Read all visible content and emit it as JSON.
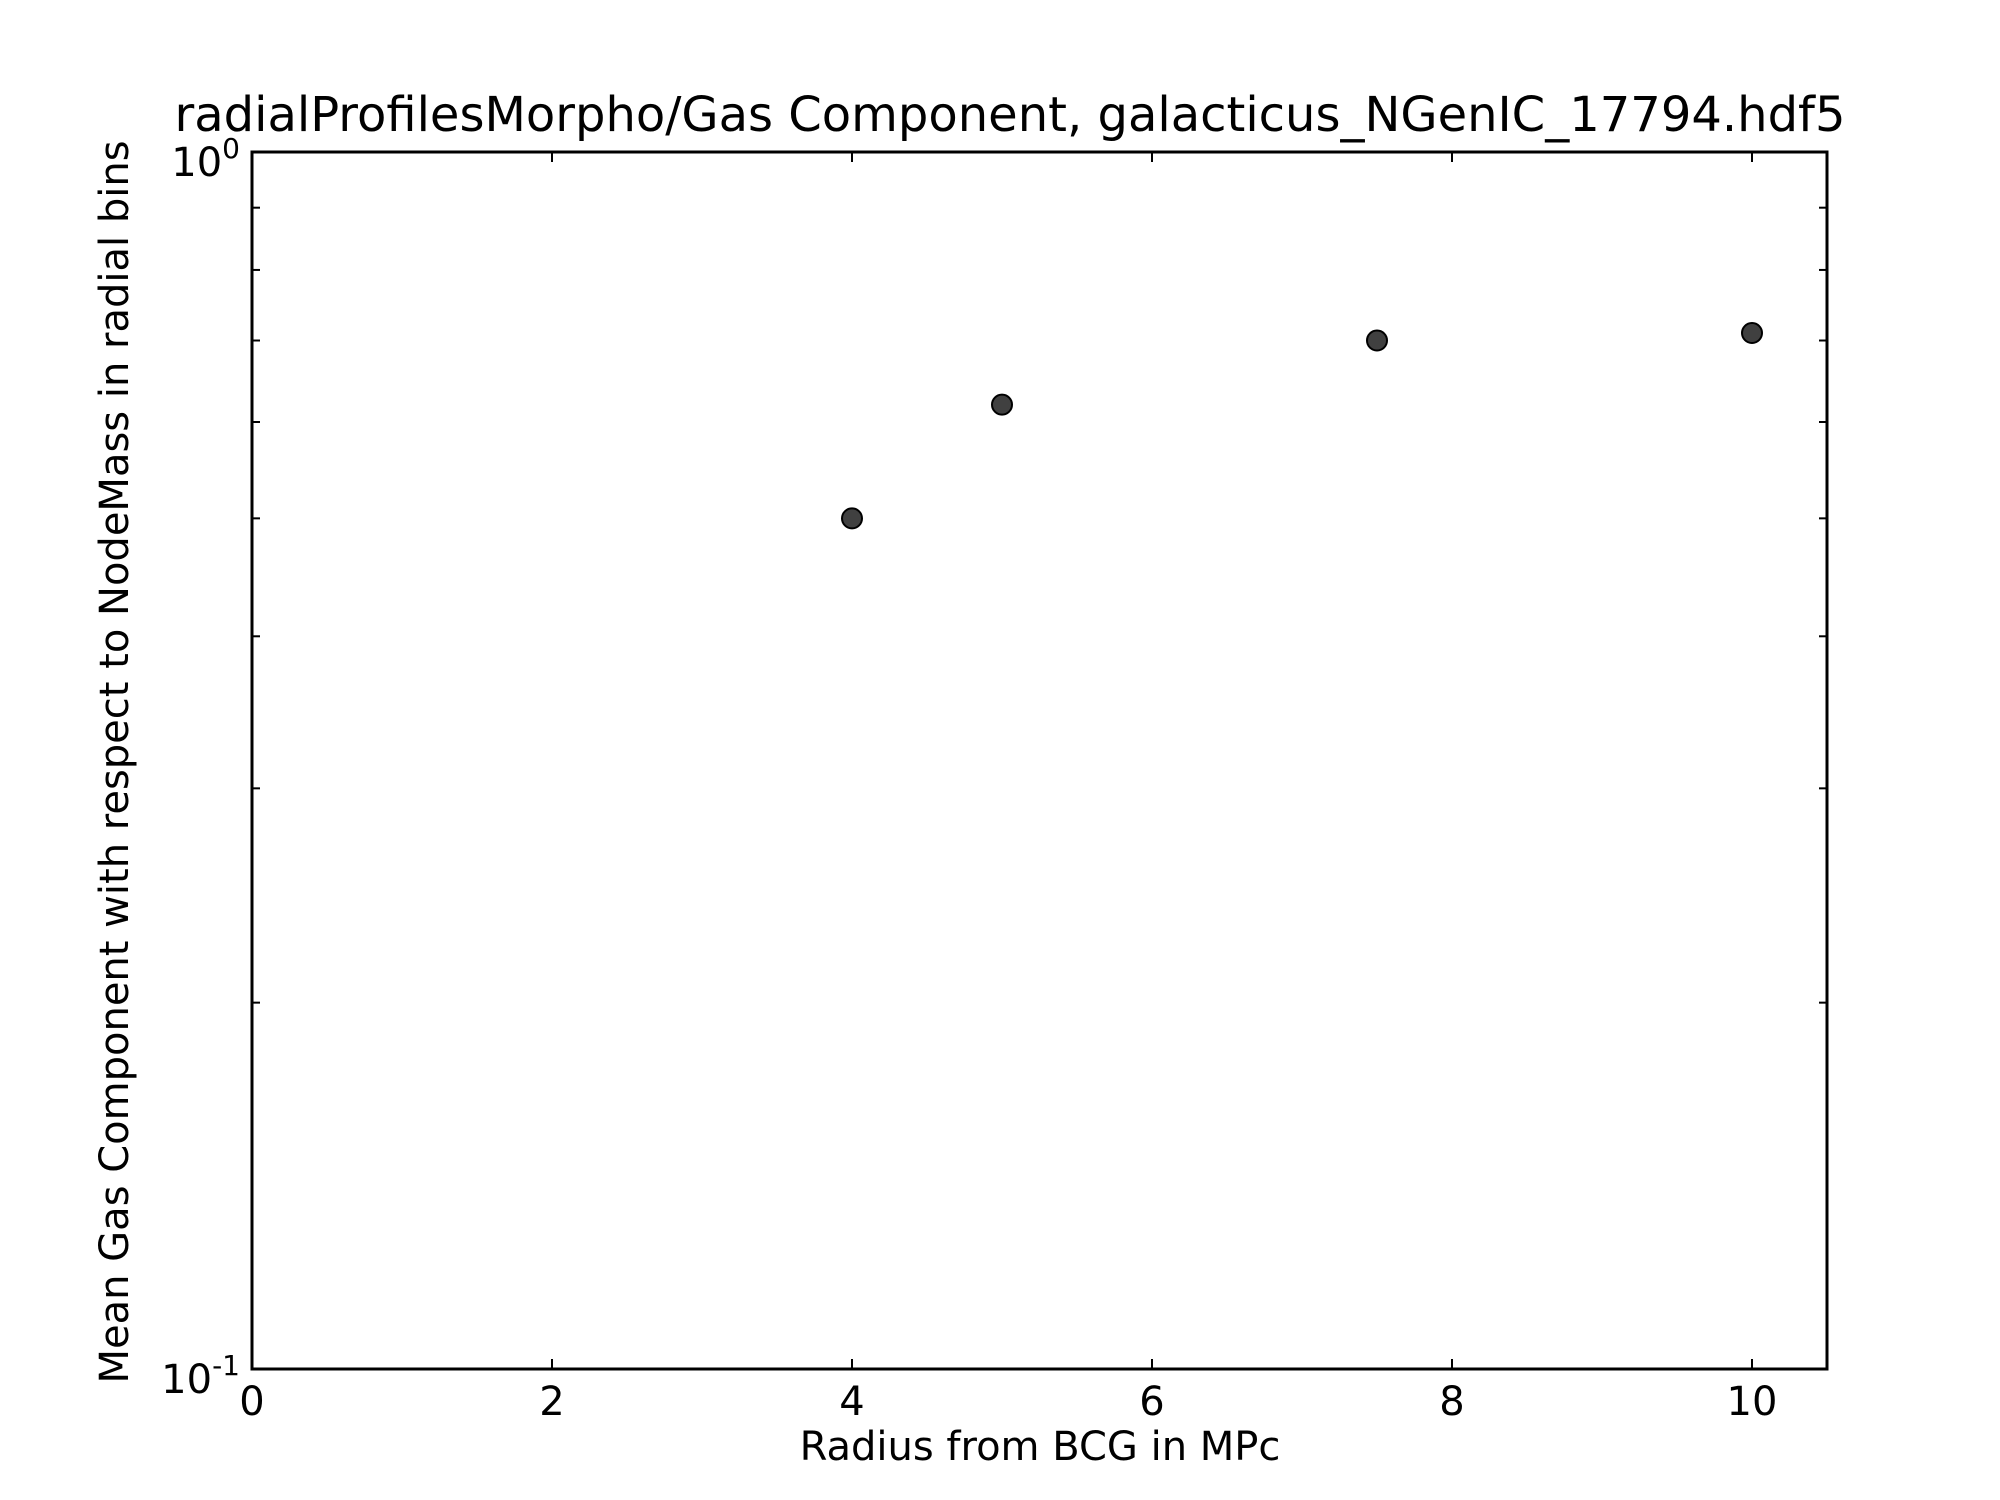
{
  "chart_data": {
    "type": "scatter",
    "title": "radialProfilesMorpho/Gas Component, galacticus_NGenIC_17794.hdf5",
    "xlabel": "Radius from BCG in MPc",
    "ylabel": "Mean Gas Component with respect to NodeMass in radial bins",
    "x_scale": "linear",
    "y_scale": "log",
    "xlim": [
      0,
      10.5
    ],
    "ylim": [
      0.1,
      1.0
    ],
    "x_ticks": [
      0,
      2,
      4,
      6,
      8,
      10
    ],
    "x_tick_labels": [
      "0",
      "2",
      "4",
      "6",
      "8",
      "10"
    ],
    "y_ticks": [
      {
        "value": 1.0,
        "base": "10",
        "exp": "0"
      },
      {
        "value": 0.1,
        "base": "10",
        "exp": "-1"
      }
    ],
    "y_minor_ticks": [
      0.2,
      0.3,
      0.4,
      0.5,
      0.6,
      0.7,
      0.8,
      0.9
    ],
    "grid": false,
    "legend": "none",
    "marker_color": "#404040",
    "series": [
      {
        "x": [
          4,
          5,
          7.5,
          10
        ],
        "y": [
          0.5,
          0.62,
          0.7,
          0.71
        ]
      }
    ]
  }
}
